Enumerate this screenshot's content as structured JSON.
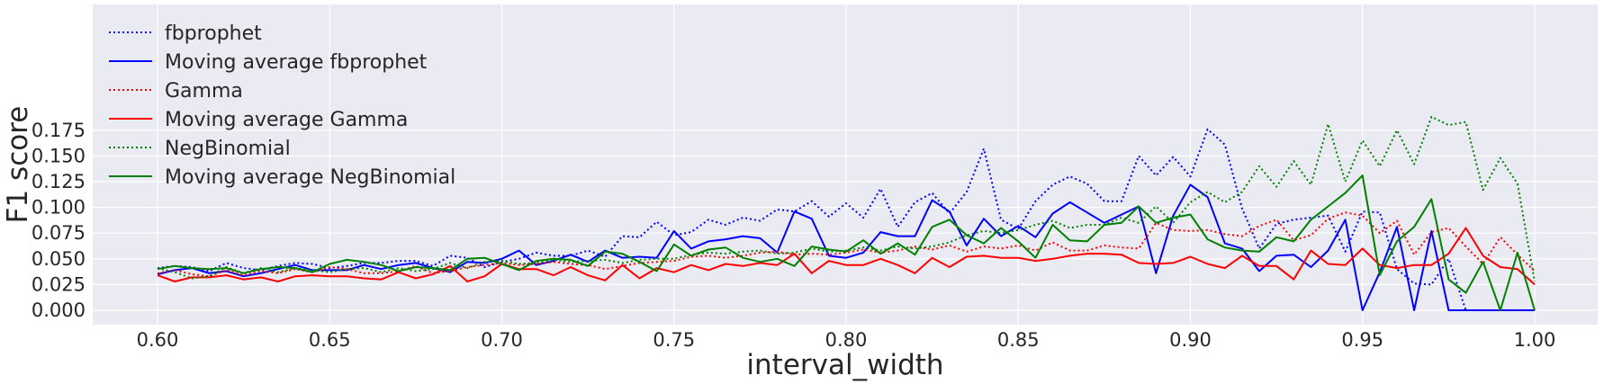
{
  "chart_data": {
    "type": "line",
    "xlabel": "interval_width",
    "ylabel": "F1 score",
    "xlim": [
      0.58,
      1.02
    ],
    "ylim": [
      -0.01,
      0.196
    ],
    "grid": true,
    "legend_placement": "top-left",
    "x_ticks": [
      "0.60",
      "0.65",
      "0.70",
      "0.75",
      "0.80",
      "0.85",
      "0.90",
      "0.95",
      "1.00"
    ],
    "y_ticks": [
      "0.000",
      "0.025",
      "0.050",
      "0.075",
      "0.100",
      "0.125",
      "0.150",
      "0.175"
    ],
    "x": [
      0.6,
      0.605,
      0.61,
      0.615,
      0.62,
      0.625,
      0.63,
      0.635,
      0.64,
      0.645,
      0.65,
      0.655,
      0.66,
      0.665,
      0.67,
      0.675,
      0.68,
      0.685,
      0.69,
      0.695,
      0.7,
      0.705,
      0.71,
      0.715,
      0.72,
      0.725,
      0.73,
      0.735,
      0.74,
      0.745,
      0.75,
      0.755,
      0.76,
      0.765,
      0.77,
      0.775,
      0.78,
      0.785,
      0.79,
      0.795,
      0.8,
      0.805,
      0.81,
      0.815,
      0.82,
      0.825,
      0.83,
      0.835,
      0.84,
      0.845,
      0.85,
      0.855,
      0.86,
      0.865,
      0.87,
      0.875,
      0.88,
      0.885,
      0.89,
      0.895,
      0.9,
      0.905,
      0.91,
      0.915,
      0.92,
      0.925,
      0.93,
      0.935,
      0.94,
      0.945,
      0.95,
      0.955,
      0.96,
      0.965,
      0.97,
      0.975,
      0.98,
      0.985,
      0.99,
      0.995,
      1.0
    ],
    "series": [
      {
        "name": "fbprophet",
        "color": "#0000ff",
        "dash": "dotted",
        "values": [
          0.041,
          0.043,
          0.042,
          0.038,
          0.046,
          0.041,
          0.039,
          0.043,
          0.046,
          0.045,
          0.041,
          0.043,
          0.046,
          0.046,
          0.048,
          0.048,
          0.043,
          0.053,
          0.051,
          0.042,
          0.047,
          0.05,
          0.056,
          0.053,
          0.053,
          0.058,
          0.052,
          0.072,
          0.071,
          0.086,
          0.073,
          0.076,
          0.088,
          0.083,
          0.09,
          0.087,
          0.098,
          0.096,
          0.106,
          0.091,
          0.104,
          0.09,
          0.118,
          0.081,
          0.105,
          0.114,
          0.094,
          0.115,
          0.157,
          0.088,
          0.079,
          0.106,
          0.122,
          0.13,
          0.123,
          0.106,
          0.106,
          0.15,
          0.131,
          0.149,
          0.13,
          0.176,
          0.161,
          0.099,
          0.06,
          0.084,
          0.088,
          0.09,
          0.092,
          0.057,
          0.096,
          0.095,
          0.04,
          0.026,
          0.025,
          0.05,
          0.0,
          0.0,
          0.0,
          0.0,
          0.0
        ]
      },
      {
        "name": "Moving average fbprophet",
        "color": "#0000ff",
        "dash": "solid",
        "values": [
          0.035,
          0.039,
          0.041,
          0.036,
          0.038,
          0.033,
          0.036,
          0.04,
          0.044,
          0.039,
          0.039,
          0.039,
          0.044,
          0.04,
          0.044,
          0.046,
          0.041,
          0.037,
          0.047,
          0.046,
          0.05,
          0.058,
          0.044,
          0.048,
          0.054,
          0.047,
          0.058,
          0.051,
          0.052,
          0.051,
          0.077,
          0.06,
          0.067,
          0.069,
          0.072,
          0.07,
          0.056,
          0.096,
          0.089,
          0.053,
          0.051,
          0.056,
          0.076,
          0.072,
          0.072,
          0.107,
          0.096,
          0.063,
          0.089,
          0.072,
          0.082,
          0.071,
          0.094,
          0.105,
          0.095,
          0.085,
          0.093,
          0.101,
          0.036,
          0.092,
          0.122,
          0.11,
          0.065,
          0.06,
          0.038,
          0.053,
          0.054,
          0.042,
          0.058,
          0.088,
          0.0,
          0.037,
          0.081,
          0.0,
          0.077,
          0.0,
          0.0,
          0.0,
          0.0,
          0.0,
          0.0
        ]
      },
      {
        "name": "Gamma",
        "color": "#ff0000",
        "dash": "dotted",
        "values": [
          0.036,
          0.039,
          0.035,
          0.033,
          0.039,
          0.034,
          0.038,
          0.036,
          0.04,
          0.037,
          0.042,
          0.04,
          0.036,
          0.036,
          0.038,
          0.043,
          0.036,
          0.038,
          0.042,
          0.044,
          0.046,
          0.044,
          0.045,
          0.047,
          0.045,
          0.044,
          0.04,
          0.043,
          0.046,
          0.047,
          0.048,
          0.052,
          0.053,
          0.051,
          0.053,
          0.056,
          0.057,
          0.054,
          0.055,
          0.054,
          0.056,
          0.059,
          0.056,
          0.058,
          0.062,
          0.059,
          0.063,
          0.057,
          0.062,
          0.06,
          0.063,
          0.058,
          0.066,
          0.058,
          0.058,
          0.063,
          0.061,
          0.06,
          0.085,
          0.078,
          0.077,
          0.078,
          0.074,
          0.072,
          0.082,
          0.088,
          0.068,
          0.073,
          0.089,
          0.095,
          0.092,
          0.075,
          0.087,
          0.054,
          0.076,
          0.08,
          0.062,
          0.045,
          0.071,
          0.054,
          0.038
        ]
      },
      {
        "name": "Moving average Gamma",
        "color": "#ff0000",
        "dash": "solid",
        "values": [
          0.034,
          0.028,
          0.032,
          0.032,
          0.034,
          0.03,
          0.032,
          0.028,
          0.033,
          0.034,
          0.033,
          0.033,
          0.031,
          0.03,
          0.037,
          0.031,
          0.035,
          0.043,
          0.028,
          0.033,
          0.045,
          0.04,
          0.04,
          0.034,
          0.042,
          0.034,
          0.029,
          0.044,
          0.031,
          0.041,
          0.037,
          0.044,
          0.039,
          0.045,
          0.043,
          0.046,
          0.044,
          0.055,
          0.036,
          0.048,
          0.044,
          0.044,
          0.05,
          0.044,
          0.036,
          0.051,
          0.042,
          0.052,
          0.053,
          0.051,
          0.051,
          0.048,
          0.05,
          0.053,
          0.055,
          0.055,
          0.054,
          0.046,
          0.045,
          0.046,
          0.052,
          0.045,
          0.041,
          0.053,
          0.043,
          0.043,
          0.03,
          0.058,
          0.045,
          0.044,
          0.06,
          0.044,
          0.041,
          0.044,
          0.044,
          0.055,
          0.08,
          0.053,
          0.042,
          0.04,
          0.025
        ]
      },
      {
        "name": "NegBinomial",
        "color": "#008000",
        "dash": "dotted",
        "values": [
          0.041,
          0.037,
          0.031,
          0.033,
          0.042,
          0.036,
          0.041,
          0.037,
          0.041,
          0.039,
          0.037,
          0.04,
          0.041,
          0.037,
          0.041,
          0.038,
          0.04,
          0.046,
          0.041,
          0.047,
          0.048,
          0.045,
          0.046,
          0.049,
          0.047,
          0.048,
          0.049,
          0.046,
          0.049,
          0.05,
          0.05,
          0.054,
          0.056,
          0.055,
          0.057,
          0.058,
          0.055,
          0.056,
          0.06,
          0.057,
          0.058,
          0.061,
          0.058,
          0.062,
          0.06,
          0.062,
          0.066,
          0.073,
          0.077,
          0.075,
          0.078,
          0.083,
          0.087,
          0.08,
          0.083,
          0.083,
          0.09,
          0.085,
          0.101,
          0.085,
          0.105,
          0.115,
          0.105,
          0.115,
          0.14,
          0.12,
          0.145,
          0.122,
          0.181,
          0.125,
          0.165,
          0.14,
          0.175,
          0.142,
          0.188,
          0.18,
          0.183,
          0.117,
          0.148,
          0.123,
          0.028
        ]
      },
      {
        "name": "Moving average NegBinomial",
        "color": "#008000",
        "dash": "solid",
        "values": [
          0.04,
          0.043,
          0.041,
          0.04,
          0.041,
          0.036,
          0.04,
          0.042,
          0.041,
          0.037,
          0.045,
          0.049,
          0.047,
          0.044,
          0.038,
          0.042,
          0.041,
          0.039,
          0.05,
          0.051,
          0.045,
          0.039,
          0.048,
          0.05,
          0.049,
          0.043,
          0.057,
          0.055,
          0.047,
          0.038,
          0.064,
          0.053,
          0.059,
          0.061,
          0.051,
          0.047,
          0.05,
          0.043,
          0.062,
          0.059,
          0.057,
          0.068,
          0.055,
          0.065,
          0.054,
          0.081,
          0.088,
          0.073,
          0.065,
          0.08,
          0.067,
          0.051,
          0.083,
          0.068,
          0.067,
          0.083,
          0.085,
          0.101,
          0.085,
          0.09,
          0.093,
          0.069,
          0.061,
          0.058,
          0.057,
          0.071,
          0.067,
          0.088,
          0.101,
          0.114,
          0.131,
          0.034,
          0.067,
          0.081,
          0.108,
          0.03,
          0.017,
          0.047,
          0.0,
          0.056,
          0.0
        ]
      }
    ]
  }
}
